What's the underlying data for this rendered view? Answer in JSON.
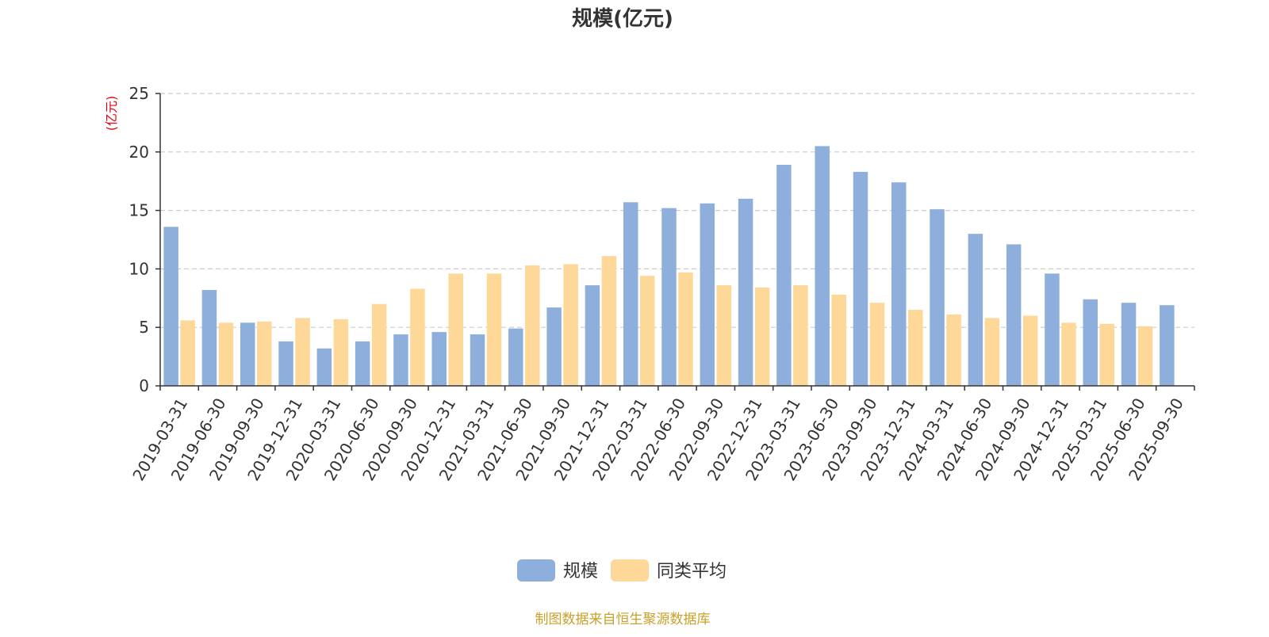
{
  "chart_data": {
    "type": "bar",
    "title": "规模(亿元)",
    "ylabel": "(亿元)",
    "ylim": [
      0,
      25
    ],
    "yticks": [
      0,
      5,
      10,
      15,
      20,
      25
    ],
    "grid": true,
    "legend_position": "bottom-center",
    "categories": [
      "2019-03-31",
      "2019-06-30",
      "2019-09-30",
      "2019-12-31",
      "2020-03-31",
      "2020-06-30",
      "2020-09-30",
      "2020-12-31",
      "2021-03-31",
      "2021-06-30",
      "2021-09-30",
      "2021-12-31",
      "2022-03-31",
      "2022-06-30",
      "2022-09-30",
      "2022-12-31",
      "2023-03-31",
      "2023-06-30",
      "2023-09-30",
      "2023-12-31",
      "2024-03-31",
      "2024-06-30",
      "2024-09-30",
      "2024-12-31",
      "2025-03-31",
      "2025-06-30",
      "2025-09-30"
    ],
    "series": [
      {
        "name": "规模",
        "color": "#8eaedc",
        "values": [
          13.6,
          8.2,
          5.4,
          3.8,
          3.2,
          3.8,
          4.4,
          4.6,
          4.4,
          4.9,
          6.7,
          8.6,
          15.7,
          15.2,
          15.6,
          16.0,
          18.9,
          20.5,
          18.3,
          17.4,
          15.1,
          13.0,
          12.1,
          9.6,
          7.4,
          7.1,
          6.9
        ]
      },
      {
        "name": "同类平均",
        "color": "#fdd899",
        "values": [
          5.6,
          5.4,
          5.5,
          5.8,
          5.7,
          7.0,
          8.3,
          9.6,
          9.6,
          10.3,
          10.4,
          11.1,
          9.4,
          9.7,
          8.6,
          8.4,
          8.6,
          7.8,
          7.1,
          6.5,
          6.1,
          5.8,
          6.0,
          5.4,
          5.3,
          5.1,
          null
        ]
      }
    ]
  },
  "footer": {
    "source": "制图数据来自恒生聚源数据库"
  }
}
